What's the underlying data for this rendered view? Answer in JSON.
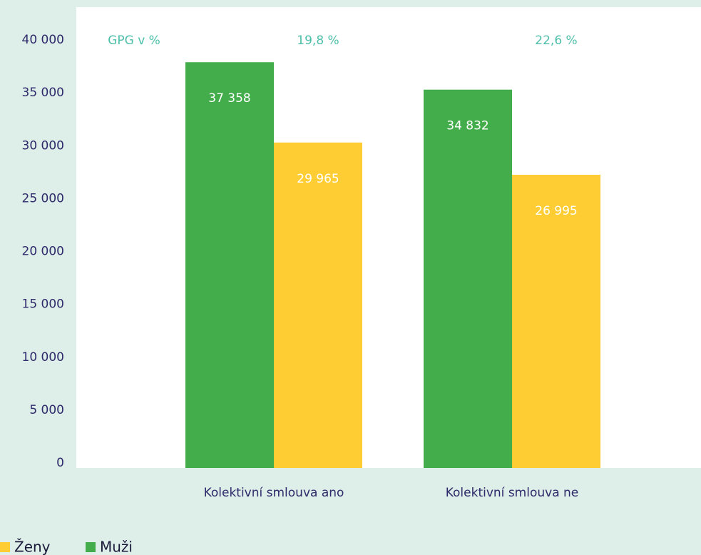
{
  "chart_data": {
    "type": "bar",
    "categories": [
      "Kolektivní smlouva ano",
      "Kolektivní smlouva ne"
    ],
    "series": [
      {
        "name": "Muži",
        "color": "#43ad4b",
        "values": [
          37358,
          34832
        ],
        "value_labels": [
          "37 358",
          "34 832"
        ]
      },
      {
        "name": "Ženy",
        "color": "#fecd33",
        "values": [
          29965,
          26995
        ],
        "value_labels": [
          "29 965",
          "26 995"
        ]
      }
    ],
    "annotations": {
      "label": "GPG v %",
      "values": [
        19.8,
        22.6
      ],
      "value_labels": [
        "19,8 %",
        "22,6 %"
      ]
    },
    "ylim": [
      0,
      40000
    ],
    "yticks": [
      0,
      {
        "value": 5000,
        "label": "5 000"
      },
      {
        "value": 10000,
        "label": "10 000"
      },
      {
        "value": 15000,
        "label": "15 000"
      },
      {
        "value": 20000,
        "label": "20 000"
      },
      {
        "value": 25000,
        "label": "25 000"
      },
      {
        "value": 30000,
        "label": "30 000"
      },
      {
        "value": 35000,
        "label": "35 000"
      },
      {
        "value": 40000,
        "label": "40 000"
      }
    ],
    "legend": "bottom-left"
  }
}
